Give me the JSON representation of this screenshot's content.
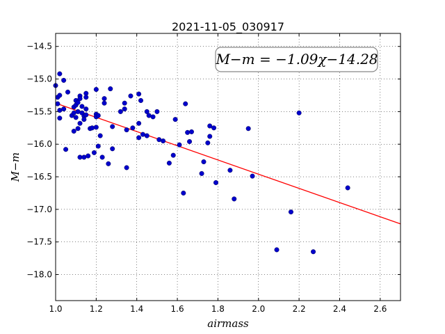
{
  "chart_data": {
    "type": "scatter",
    "title": "2021-11-05_030917",
    "xlabel": "airmass",
    "ylabel": "M−m",
    "xlim": [
      1.0,
      2.7
    ],
    "ylim": [
      -18.4,
      -14.3
    ],
    "x_ticks": [
      1.0,
      1.2,
      1.4,
      1.6,
      1.8,
      2.0,
      2.2,
      2.4,
      2.6
    ],
    "x_tick_labels": [
      "1.0",
      "1.2",
      "1.4",
      "1.6",
      "1.8",
      "2.0",
      "2.2",
      "2.4",
      "2.6"
    ],
    "y_ticks": [
      -14.5,
      -15.0,
      -15.5,
      -16.0,
      -16.5,
      -17.0,
      -17.5,
      -18.0
    ],
    "y_tick_labels": [
      "−14.5",
      "−15.0",
      "−15.5",
      "−16.0",
      "−16.5",
      "−17.0",
      "−17.5",
      "−18.0"
    ],
    "grid": true,
    "legend_position": "top-right",
    "fit_label": "M−m = −1.09χ−14.28",
    "fit": {
      "slope": -1.09,
      "intercept": -14.28
    },
    "points": [
      [
        1.0,
        -15.1
      ],
      [
        1.01,
        -15.38
      ],
      [
        1.01,
        -15.28
      ],
      [
        1.02,
        -14.92
      ],
      [
        1.02,
        -15.25
      ],
      [
        1.02,
        -15.48
      ],
      [
        1.02,
        -15.6
      ],
      [
        1.04,
        -15.02
      ],
      [
        1.04,
        -15.46
      ],
      [
        1.05,
        -16.08
      ],
      [
        1.06,
        -15.2
      ],
      [
        1.08,
        -15.56
      ],
      [
        1.09,
        -15.52
      ],
      [
        1.09,
        -15.8
      ],
      [
        1.09,
        -15.43
      ],
      [
        1.1,
        -15.33
      ],
      [
        1.1,
        -15.4
      ],
      [
        1.1,
        -15.59
      ],
      [
        1.11,
        -15.76
      ],
      [
        1.11,
        -15.5
      ],
      [
        1.11,
        -15.36
      ],
      [
        1.12,
        -15.26
      ],
      [
        1.12,
        -15.68
      ],
      [
        1.12,
        -15.3
      ],
      [
        1.12,
        -16.2
      ],
      [
        1.13,
        -15.52
      ],
      [
        1.13,
        -15.42
      ],
      [
        1.14,
        -15.57
      ],
      [
        1.14,
        -15.62
      ],
      [
        1.14,
        -16.2
      ],
      [
        1.15,
        -15.22
      ],
      [
        1.15,
        -15.28
      ],
      [
        1.15,
        -15.46
      ],
      [
        1.15,
        -15.55
      ],
      [
        1.16,
        -16.18
      ],
      [
        1.17,
        -15.76
      ],
      [
        1.18,
        -15.75
      ],
      [
        1.19,
        -16.13
      ],
      [
        1.2,
        -15.16
      ],
      [
        1.2,
        -15.54
      ],
      [
        1.2,
        -15.58
      ],
      [
        1.2,
        -15.74
      ],
      [
        1.21,
        -15.56
      ],
      [
        1.21,
        -16.03
      ],
      [
        1.22,
        -15.87
      ],
      [
        1.23,
        -16.2
      ],
      [
        1.24,
        -15.37
      ],
      [
        1.24,
        -15.3
      ],
      [
        1.26,
        -16.3
      ],
      [
        1.27,
        -15.15
      ],
      [
        1.28,
        -15.73
      ],
      [
        1.28,
        -16.07
      ],
      [
        1.32,
        -15.5
      ],
      [
        1.34,
        -15.37
      ],
      [
        1.34,
        -15.46
      ],
      [
        1.35,
        -16.36
      ],
      [
        1.35,
        -15.78
      ],
      [
        1.37,
        -15.26
      ],
      [
        1.38,
        -15.75
      ],
      [
        1.41,
        -15.23
      ],
      [
        1.41,
        -15.68
      ],
      [
        1.41,
        -15.9
      ],
      [
        1.42,
        -15.33
      ],
      [
        1.43,
        -15.85
      ],
      [
        1.45,
        -15.5
      ],
      [
        1.45,
        -15.87
      ],
      [
        1.46,
        -15.56
      ],
      [
        1.48,
        -15.58
      ],
      [
        1.5,
        -15.5
      ],
      [
        1.51,
        -15.93
      ],
      [
        1.53,
        -15.95
      ],
      [
        1.56,
        -16.29
      ],
      [
        1.58,
        -16.17
      ],
      [
        1.59,
        -15.62
      ],
      [
        1.61,
        -16.01
      ],
      [
        1.63,
        -16.75
      ],
      [
        1.64,
        -15.38
      ],
      [
        1.65,
        -15.82
      ],
      [
        1.66,
        -15.96
      ],
      [
        1.67,
        -15.81
      ],
      [
        1.72,
        -16.45
      ],
      [
        1.73,
        -16.27
      ],
      [
        1.75,
        -15.98
      ],
      [
        1.76,
        -15.72
      ],
      [
        1.76,
        -15.88
      ],
      [
        1.78,
        -15.75
      ],
      [
        1.79,
        -16.59
      ],
      [
        1.86,
        -16.4
      ],
      [
        1.88,
        -16.84
      ],
      [
        1.95,
        -15.76
      ],
      [
        1.97,
        -16.49
      ],
      [
        2.09,
        -17.62
      ],
      [
        2.16,
        -17.04
      ],
      [
        2.2,
        -15.52
      ],
      [
        2.27,
        -17.65
      ],
      [
        2.44,
        -16.67
      ]
    ],
    "colors": {
      "points": "#0000cc",
      "fit": "#ff0000",
      "legend_border": "#888888"
    }
  }
}
